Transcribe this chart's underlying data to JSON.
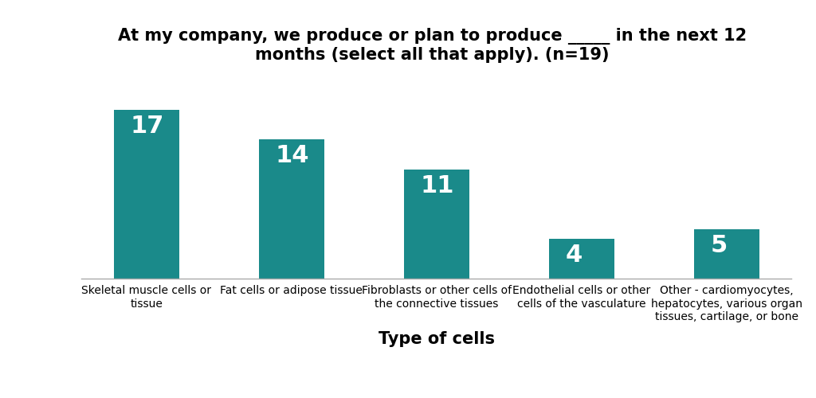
{
  "categories": [
    "Skeletal muscle cells or\ntissue",
    "Fat cells or adipose tissue",
    "Fibroblasts or other cells of\nthe connective tissues",
    "Endothelial cells or other\ncells of the vasculature",
    "Other - cardiomyocytes,\nhepatocytes, various organ\ntissues, cartilage, or bone"
  ],
  "values": [
    17,
    14,
    11,
    4,
    5
  ],
  "bar_color": "#1a8a8a",
  "title_line1": "At my company, we produce or plan to produce _____ in the next 12",
  "title_line2": "months (select all that apply). (n=19)",
  "xlabel": "Type of cells",
  "ylim": [
    0,
    20
  ],
  "bar_label_color": "#ffffff",
  "bar_label_fontsize": 22,
  "title_fontsize": 15,
  "xlabel_fontsize": 15,
  "ylabel_fontsize": 12,
  "tick_label_fontsize": 10,
  "background_color": "#ffffff"
}
